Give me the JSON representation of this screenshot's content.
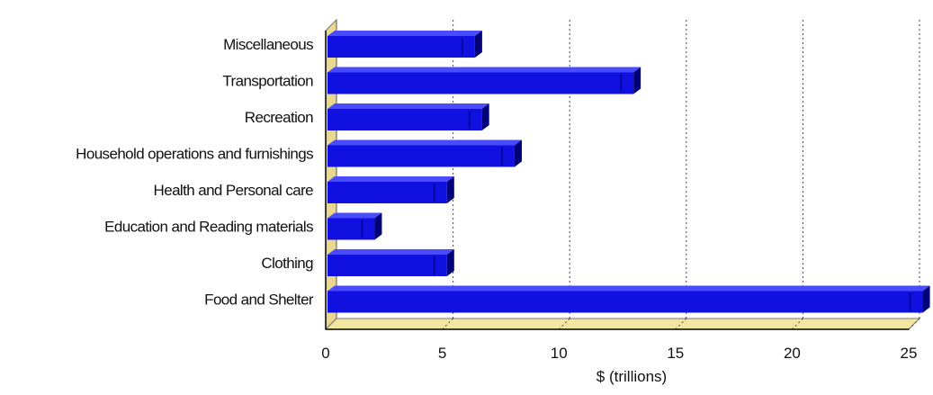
{
  "colors": {
    "bar": "#1010e0",
    "bar_light": "#4a4aff",
    "bar_dark": "#000078",
    "wall_top": "#f2e6a0",
    "wall_left": "#e8d890",
    "grid": "#444444"
  },
  "chart_data": {
    "type": "bar",
    "orientation": "horizontal",
    "title": "",
    "xlabel": "$ (trillions)",
    "ylabel": "",
    "xlim": [
      0,
      25
    ],
    "xticks": [
      0,
      5,
      10,
      15,
      20,
      25
    ],
    "grid": true,
    "categories": [
      "Miscellaneous",
      "Transportation",
      "Recreation",
      "Household operations and furnishings",
      "Health and Personal care",
      "Education and Reading materials",
      "Clothing",
      "Food and Shelter"
    ],
    "series": [
      {
        "values": [
          6.4,
          13.2,
          6.7,
          8.1,
          5.2,
          2.1,
          5.2,
          25.6
        ]
      }
    ]
  }
}
